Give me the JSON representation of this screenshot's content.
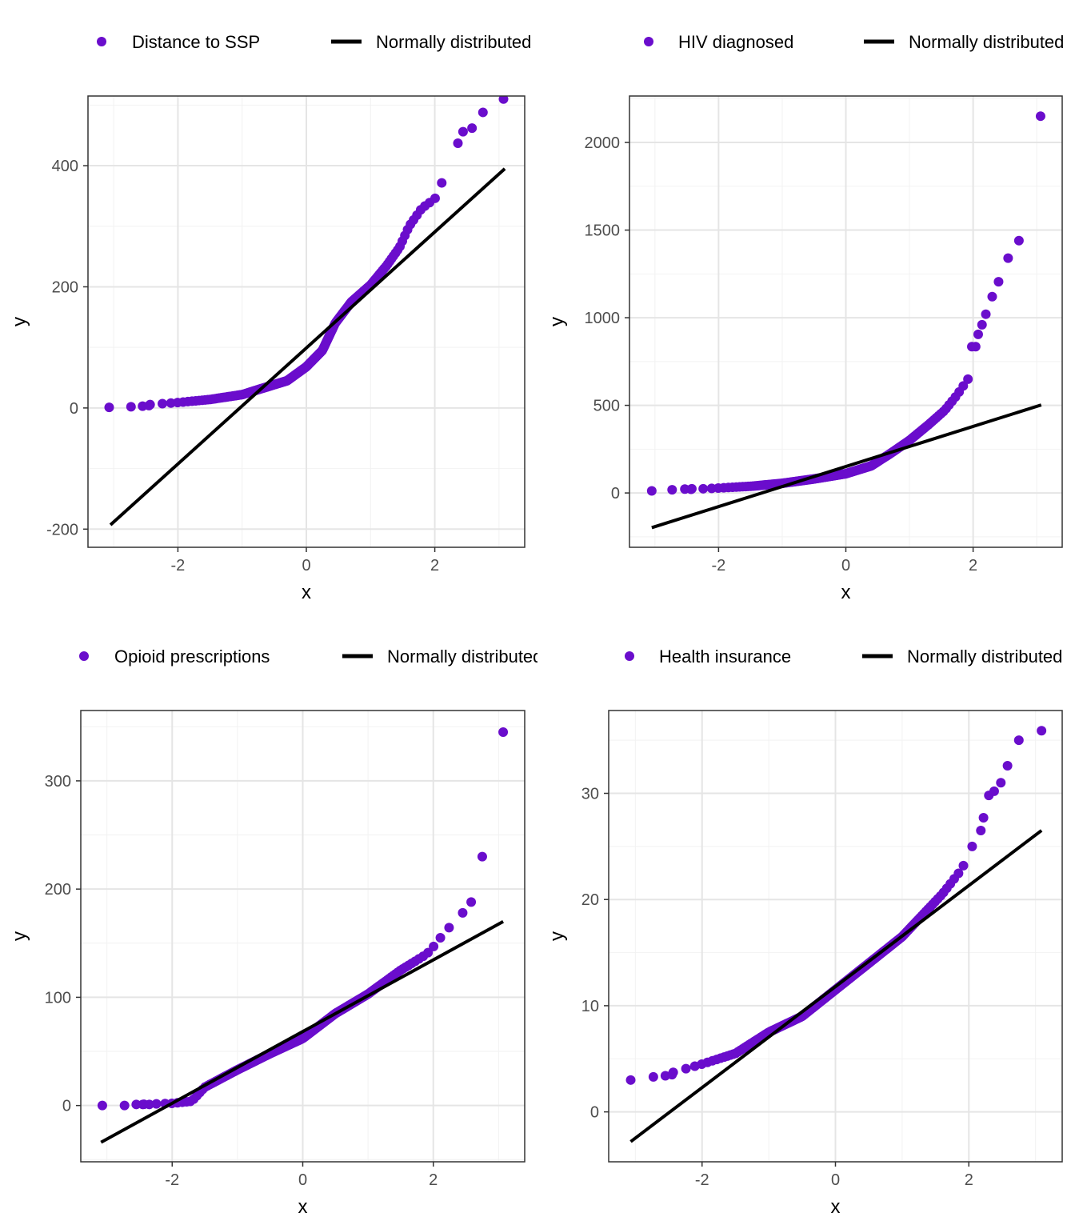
{
  "colors": {
    "points": "#6a0dcc",
    "line": "#000000",
    "grid_major": "#e5e5e5",
    "grid_minor": "#f2f2f2",
    "panel_border": "#333333",
    "tick_text": "#4d4d4d"
  },
  "chart_data": [
    {
      "type": "scatter",
      "title": "",
      "xlabel": "x",
      "ylabel": "y",
      "legend": {
        "position": "top",
        "points_label": "Distance to SSP",
        "line_label": "Normally distributed"
      },
      "xlim": [
        -3.4,
        3.4
      ],
      "ylim": [
        -230,
        515
      ],
      "xticks": [
        -2,
        0,
        2
      ],
      "xtick_labels": [
        "-2",
        "0",
        "2"
      ],
      "yticks": [
        -200,
        0,
        200,
        400
      ],
      "ytick_labels": [
        "-200",
        "0",
        "200",
        "400"
      ],
      "line": {
        "x": [
          -3.05,
          3.09
        ],
        "y": [
          -193,
          395
        ]
      },
      "anchors": [
        [
          -3.07,
          1
        ],
        [
          -2.5,
          5
        ],
        [
          -2.0,
          9
        ],
        [
          -1.5,
          14
        ],
        [
          -1.0,
          22
        ],
        [
          -0.7,
          32
        ],
        [
          -0.3,
          45
        ],
        [
          0.0,
          68
        ],
        [
          0.25,
          95
        ],
        [
          0.45,
          140
        ],
        [
          0.7,
          175
        ],
        [
          1.0,
          203
        ],
        [
          1.25,
          235
        ],
        [
          1.45,
          265
        ],
        [
          1.6,
          300
        ],
        [
          1.8,
          330
        ],
        [
          2.0,
          345
        ],
        [
          2.1,
          370
        ],
        [
          2.2,
          389
        ]
      ],
      "series": [
        {
          "name": "Distance to SSP",
          "points": [
            [
              2.36,
              437
            ],
            [
              2.44,
              456
            ],
            [
              2.58,
              462
            ],
            [
              2.75,
              488
            ],
            [
              3.07,
              510
            ],
            [
              -3.07,
              1
            ],
            [
              -2.73,
              2
            ],
            [
              -2.55,
              3
            ],
            [
              -2.45,
              4
            ]
          ]
        }
      ]
    },
    {
      "type": "scatter",
      "title": "",
      "xlabel": "x",
      "ylabel": "y",
      "legend": {
        "position": "top",
        "points_label": "HIV diagnosed",
        "line_label": "Normally distributed"
      },
      "xlim": [
        -3.4,
        3.4
      ],
      "ylim": [
        -310,
        2265
      ],
      "xticks": [
        -2,
        0,
        2
      ],
      "xtick_labels": [
        "-2",
        "0",
        "2"
      ],
      "yticks": [
        0,
        500,
        1000,
        1500,
        2000
      ],
      "ytick_labels": [
        "0",
        "500",
        "1000",
        "1500",
        "2000"
      ],
      "line": {
        "x": [
          -3.05,
          3.07
        ],
        "y": [
          -198,
          502
        ]
      },
      "anchors": [
        [
          -3.05,
          12
        ],
        [
          -2.5,
          20
        ],
        [
          -2.0,
          28
        ],
        [
          -1.5,
          38
        ],
        [
          -1.0,
          55
        ],
        [
          -0.5,
          80
        ],
        [
          0.0,
          110
        ],
        [
          0.4,
          155
        ],
        [
          0.7,
          225
        ],
        [
          1.0,
          300
        ],
        [
          1.3,
          390
        ],
        [
          1.55,
          470
        ],
        [
          1.75,
          560
        ],
        [
          1.9,
          640
        ],
        [
          2.0,
          690
        ]
      ],
      "series": [
        {
          "name": "HIV diagnosed",
          "points": [
            [
              1.98,
              835
            ],
            [
              2.04,
              835
            ],
            [
              2.08,
              905
            ],
            [
              2.14,
              960
            ],
            [
              2.2,
              1020
            ],
            [
              2.3,
              1120
            ],
            [
              2.4,
              1205
            ],
            [
              2.55,
              1340
            ],
            [
              2.72,
              1440
            ],
            [
              3.06,
              2150
            ],
            [
              -3.05,
              12
            ],
            [
              -2.73,
              18
            ],
            [
              -2.53,
              22
            ],
            [
              -2.42,
              24
            ]
          ]
        }
      ]
    },
    {
      "type": "scatter",
      "title": "",
      "xlabel": "x",
      "ylabel": "y",
      "legend": {
        "position": "top",
        "points_label": "Opioid prescriptions",
        "line_label": "Normally distributed"
      },
      "xlim": [
        -3.4,
        3.4
      ],
      "ylim": [
        -52,
        365
      ],
      "xticks": [
        -2,
        0,
        2
      ],
      "xtick_labels": [
        "-2",
        "0",
        "2"
      ],
      "yticks": [
        0,
        100,
        200,
        300
      ],
      "ytick_labels": [
        "0",
        "100",
        "200",
        "300"
      ],
      "line": {
        "x": [
          -3.09,
          3.07
        ],
        "y": [
          -34,
          170
        ]
      },
      "anchors": [
        [
          -3.07,
          0
        ],
        [
          -2.5,
          1
        ],
        [
          -2.0,
          2
        ],
        [
          -1.7,
          4
        ],
        [
          -1.5,
          17
        ],
        [
          -1.0,
          33
        ],
        [
          -0.5,
          48
        ],
        [
          0.0,
          62
        ],
        [
          0.5,
          85
        ],
        [
          1.0,
          103
        ],
        [
          1.5,
          125
        ],
        [
          1.9,
          140
        ],
        [
          2.05,
          150
        ],
        [
          2.2,
          163
        ],
        [
          2.35,
          168
        ]
      ],
      "series": [
        {
          "name": "Opioid prescriptions",
          "points": [
            [
              2.45,
              178
            ],
            [
              2.58,
              188
            ],
            [
              2.75,
              230
            ],
            [
              3.07,
              345
            ],
            [
              -3.07,
              0
            ],
            [
              -2.73,
              0
            ],
            [
              -2.55,
              1
            ],
            [
              -2.45,
              1
            ],
            [
              -2.35,
              1
            ]
          ]
        }
      ]
    },
    {
      "type": "scatter",
      "title": "",
      "xlabel": "x",
      "ylabel": "y",
      "legend": {
        "position": "top",
        "points_label": "Health insurance",
        "line_label": "Normally distributed"
      },
      "xlim": [
        -3.4,
        3.4
      ],
      "ylim": [
        -4.7,
        37.8
      ],
      "xticks": [
        -2,
        0,
        2
      ],
      "xtick_labels": [
        "-2",
        "0",
        "2"
      ],
      "yticks": [
        0,
        10,
        20,
        30
      ],
      "ytick_labels": [
        "0",
        "10",
        "20",
        "30"
      ],
      "line": {
        "x": [
          -3.07,
          3.09
        ],
        "y": [
          -2.8,
          26.5
        ]
      },
      "anchors": [
        [
          -3.07,
          3
        ],
        [
          -2.5,
          3.6
        ],
        [
          -2.0,
          4.5
        ],
        [
          -1.5,
          5.5
        ],
        [
          -1.0,
          7.5
        ],
        [
          -0.5,
          9.0
        ],
        [
          0.0,
          11.5
        ],
        [
          0.5,
          14
        ],
        [
          1.0,
          16.5
        ],
        [
          1.3,
          18.5
        ],
        [
          1.6,
          20.5
        ],
        [
          1.85,
          22.5
        ],
        [
          2.0,
          24
        ]
      ],
      "series": [
        {
          "name": "Health insurance",
          "points": [
            [
              2.05,
              25
            ],
            [
              2.18,
              26.5
            ],
            [
              2.22,
              27.7
            ],
            [
              2.3,
              29.8
            ],
            [
              2.38,
              30.2
            ],
            [
              2.48,
              31
            ],
            [
              2.58,
              32.6
            ],
            [
              2.75,
              35
            ],
            [
              3.09,
              35.9
            ],
            [
              -3.07,
              3
            ],
            [
              -2.73,
              3.3
            ],
            [
              -2.55,
              3.4
            ],
            [
              -2.45,
              3.5
            ]
          ]
        }
      ]
    }
  ]
}
